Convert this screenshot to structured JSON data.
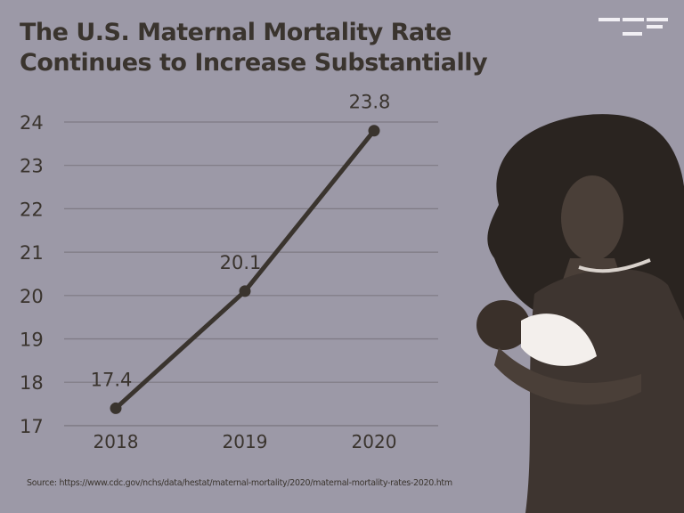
{
  "chart_data": {
    "type": "line",
    "title_lines": [
      "The U.S. Maternal Mortality Rate",
      "Continues to Increase Substantially"
    ],
    "categories": [
      "2018",
      "2019",
      "2020"
    ],
    "values": [
      17.4,
      20.1,
      23.8
    ],
    "data_labels": [
      "17.4",
      "20.1",
      "23.8"
    ],
    "y_ticks": [
      "17",
      "18",
      "19",
      "20",
      "21",
      "22",
      "23",
      "24"
    ],
    "ylim": [
      17,
      24
    ],
    "xlabel": "",
    "ylabel": "",
    "grid": true,
    "source": "Source: https://www.cdc.gov/nchs/data/hestat/maternal-mortality/2020/maternal-mortality-rates-2020.htm",
    "colors": {
      "background": "#9c99a7",
      "line": "#3a342e",
      "grid": "#7e7a84"
    }
  }
}
